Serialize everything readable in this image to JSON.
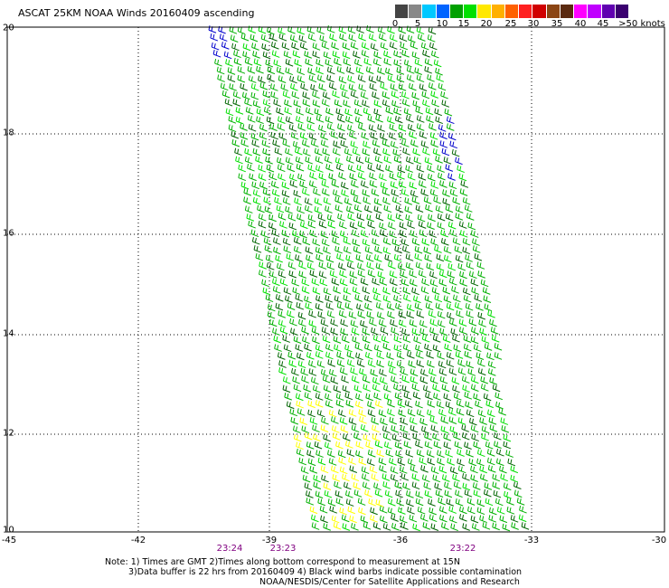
{
  "title": "ASCAT 25KM NOAA Winds 20160409 ascending",
  "colorbar": {
    "colors": [
      "#444444",
      "#888888",
      "#00c8ff",
      "#0064ff",
      "#00a000",
      "#00e000",
      "#ffe800",
      "#ffb000",
      "#ff6000",
      "#ff2020",
      "#d00000",
      "#8b4513",
      "#5a2a10",
      "#ff00ff",
      "#c000ff",
      "#6000b0",
      "#3a0070"
    ],
    "ticks": [
      "0",
      "5",
      "10",
      "15",
      "20",
      "25",
      "30",
      "35",
      "40",
      "45",
      ">50 knots"
    ]
  },
  "lat_labels": [
    "20",
    "18",
    "16",
    "14",
    "12",
    "10"
  ],
  "lon_labels": [
    "-45",
    "-42",
    "-39",
    "-36",
    "-33",
    "-30"
  ],
  "time_labels": [
    "23:24",
    "23:23",
    "23:22"
  ],
  "notes": {
    "line1": "Note: 1) Times are GMT 2)Times along bottom correspond to measurement at 15N",
    "line2": "3)Data buffer is 22 hrs from 20160409 4) Black wind barbs indicate possible contamination",
    "line3": "NOAA/NESDIS/Center for Satellite Applications and Research"
  },
  "barb_colors": {
    "main": "#00b000",
    "light": "#00e000",
    "dark": "#006400",
    "yellow": "#ffff00",
    "blue": "#0000cc"
  }
}
